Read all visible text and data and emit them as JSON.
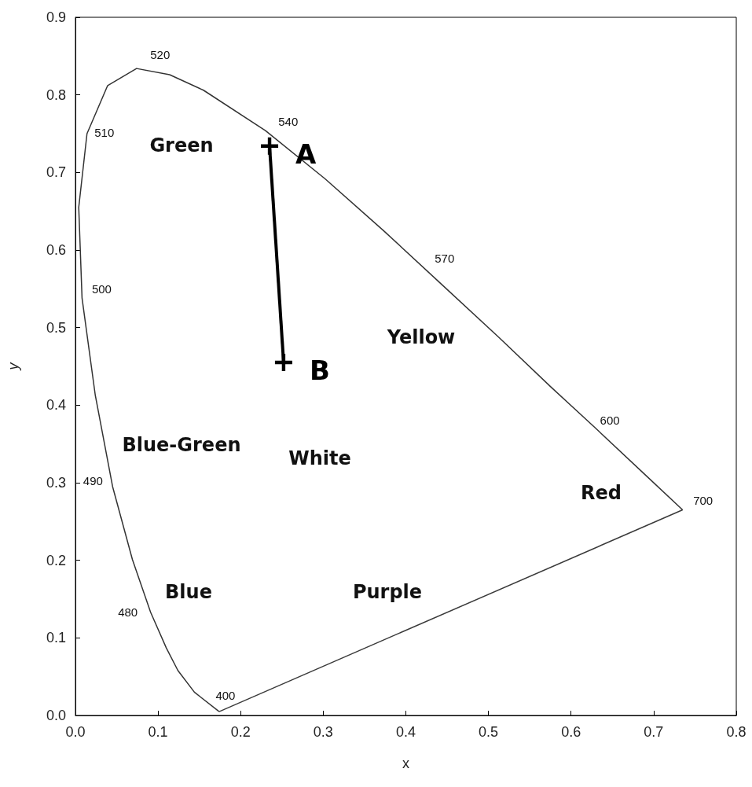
{
  "chart_data": {
    "type": "line",
    "xlabel": "x",
    "ylabel": "y",
    "xlim": [
      0,
      0.8
    ],
    "xticks": [
      {
        "value": 0,
        "label": "0.0"
      },
      {
        "value": 0.1,
        "label": "0.1"
      },
      {
        "value": 0.2,
        "label": "0.2"
      },
      {
        "value": 0.3,
        "label": "0.3"
      },
      {
        "value": 0.4,
        "label": "0.4"
      },
      {
        "value": 0.5,
        "label": "0.5"
      },
      {
        "value": 0.6,
        "label": "0.6"
      },
      {
        "value": 0.7,
        "label": "0.7"
      },
      {
        "value": 0.8,
        "label": "0.8"
      }
    ],
    "ylim": [
      0,
      0.9
    ],
    "yticks": [
      {
        "value": 0,
        "label": "0.0"
      },
      {
        "value": 0.1,
        "label": "0.1"
      },
      {
        "value": 0.2,
        "label": "0.2"
      },
      {
        "value": 0.3,
        "label": "0.3"
      },
      {
        "value": 0.4,
        "label": "0.4"
      },
      {
        "value": 0.5,
        "label": "0.5"
      },
      {
        "value": 0.6,
        "label": "0.6"
      },
      {
        "value": 0.7,
        "label": "0.7"
      },
      {
        "value": 0.8,
        "label": "0.8"
      },
      {
        "value": 0.9,
        "label": "0.9"
      }
    ],
    "grid": false,
    "series": [
      {
        "color": "#333333",
        "marker": "none",
        "x": [
          0.174,
          0.144,
          0.124,
          0.11,
          0.091,
          0.069,
          0.045,
          0.024,
          0.008,
          0.004,
          0.014,
          0.039,
          0.074,
          0.114,
          0.155,
          0.23,
          0.302,
          0.373,
          0.444,
          0.513,
          0.575,
          0.627,
          0.692,
          0.735
        ],
        "values": [
          0.005,
          0.03,
          0.058,
          0.087,
          0.133,
          0.201,
          0.295,
          0.413,
          0.538,
          0.655,
          0.75,
          0.812,
          0.834,
          0.826,
          0.806,
          0.754,
          0.692,
          0.625,
          0.555,
          0.487,
          0.424,
          0.373,
          0.308,
          0.265
        ]
      },
      {
        "color": "#3a3a3a",
        "marker": "none",
        "x": [
          0.174,
          0.735
        ],
        "values": [
          0.005,
          0.265
        ]
      },
      {
        "color": "#000000",
        "marker": "cross",
        "x": [
          0.235,
          0.252
        ],
        "values": [
          0.734,
          0.455
        ],
        "value_labels": [
          "A",
          "B"
        ]
      }
    ],
    "annotations": [
      {
        "text": "520",
        "x": 0.074,
        "y": 0.834
      },
      {
        "text": "510",
        "x": 0.014,
        "y": 0.75
      },
      {
        "text": "540",
        "x": 0.23,
        "y": 0.754
      },
      {
        "text": "570",
        "x": 0.444,
        "y": 0.555
      },
      {
        "text": "500",
        "x": 0.008,
        "y": 0.538
      },
      {
        "text": "600",
        "x": 0.627,
        "y": 0.373
      },
      {
        "text": "700",
        "x": 0.735,
        "y": 0.265
      },
      {
        "text": "490",
        "x": 0.045,
        "y": 0.295
      },
      {
        "text": "480",
        "x": 0.091,
        "y": 0.133
      },
      {
        "text": "400",
        "x": 0.174,
        "y": 0.005
      },
      "Green",
      "Yellow",
      "Blue-Green",
      "White",
      "Red",
      "Blue",
      "Purple"
    ]
  }
}
